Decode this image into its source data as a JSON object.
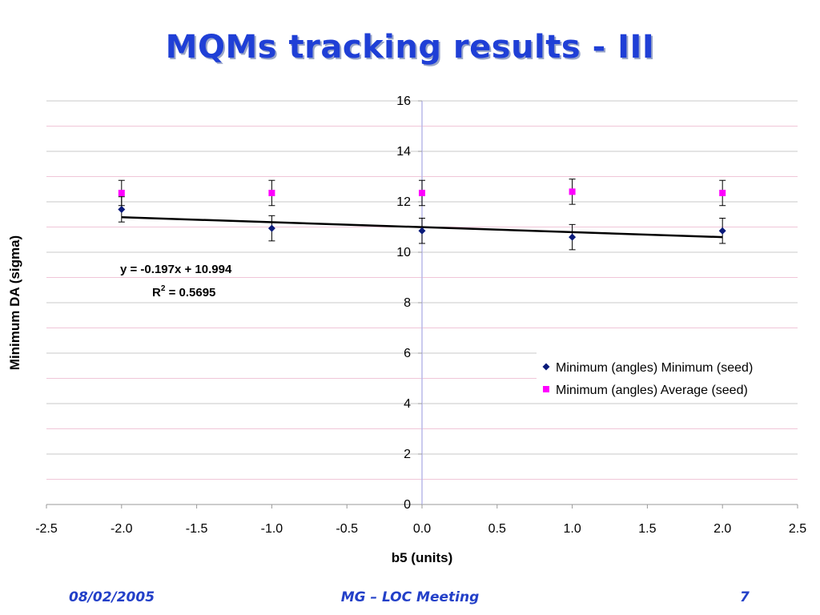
{
  "slide": {
    "title": "MQMs tracking results - III",
    "footer_date": "08/02/2005",
    "footer_center": "MG – LOC Meeting",
    "footer_page": "7"
  },
  "chart_data": {
    "type": "scatter",
    "xlabel": "b5 (units)",
    "ylabel": "Minimum DA (sigma)",
    "xlim": [
      -2.5,
      2.5
    ],
    "ylim": [
      0,
      16
    ],
    "x_ticks": [
      "-2.5",
      "-2.0",
      "-1.5",
      "-1.0",
      "-0.5",
      "0.0",
      "0.5",
      "1.0",
      "1.5",
      "2.0",
      "2.5"
    ],
    "y_ticks": [
      "0",
      "2",
      "4",
      "6",
      "8",
      "10",
      "12",
      "14",
      "16"
    ],
    "grid": true,
    "legend_position": "right",
    "series": [
      {
        "name": "Minimum (angles) Minimum (seed)",
        "marker": "diamond",
        "color": "#0a1a7a",
        "x": [
          -2.0,
          -1.0,
          0.0,
          1.0,
          2.0
        ],
        "y": [
          11.7,
          10.95,
          10.85,
          10.6,
          10.85
        ],
        "yerr": [
          0.5,
          0.5,
          0.5,
          0.5,
          0.5
        ]
      },
      {
        "name": "Minimum (angles) Average (seed)",
        "marker": "square",
        "color": "#ff00ff",
        "x": [
          -2.0,
          -1.0,
          0.0,
          1.0,
          2.0
        ],
        "y": [
          12.35,
          12.35,
          12.35,
          12.4,
          12.35
        ],
        "yerr": [
          0.5,
          0.5,
          0.5,
          0.5,
          0.5
        ]
      }
    ],
    "trendline": {
      "slope": -0.197,
      "intercept": 10.994,
      "x_range": [
        -2.0,
        2.0
      ],
      "color": "#000000",
      "equation": "y = -0.197x + 10.994",
      "r2_label": "R",
      "r2_sup": "2",
      "r2_value": " = 0.5695"
    }
  }
}
